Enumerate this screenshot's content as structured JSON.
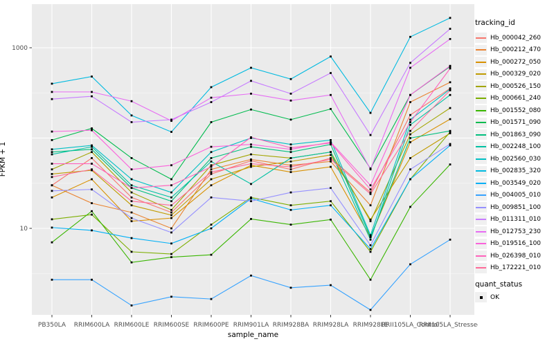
{
  "chart_data": {
    "type": "line",
    "xlabel": "sample_name",
    "ylabel": "FPKM + 1",
    "legend_title": "tracking_id",
    "quant_legend": {
      "title": "quant_status",
      "items": [
        "OK"
      ]
    },
    "y_scale": "log10",
    "y_ticks": [
      10,
      1000
    ],
    "y_minor": [
      3.162,
      31.62,
      316.2
    ],
    "y_majors_grid": [
      10,
      100,
      1000
    ],
    "ylim_px_note": "log axis, values are FPKM+1",
    "categories": [
      "PB350LA",
      "RRIM600LA",
      "RRIM600LE",
      "RRIM600SE",
      "RRIM600PE",
      "RRIM901LA",
      "RRIM928BA",
      "RRIM928LA",
      "RRIM928LE",
      "RRII105LA_Control",
      "RRII105LA_Stressed"
    ],
    "series": [
      {
        "name": "Hb_000042_260",
        "color": "#F8766D",
        "values": [
          30,
          60,
          22,
          15,
          40,
          56,
          45,
          60,
          25,
          180,
          355
        ]
      },
      {
        "name": "Hb_000212_470",
        "color": "#EA8331",
        "values": [
          30,
          19,
          15,
          10,
          45,
          58,
          50,
          55,
          18,
          250,
          415
        ]
      },
      {
        "name": "Hb_000272_050",
        "color": "#D89000",
        "values": [
          22,
          35,
          12,
          13,
          30,
          50,
          42,
          48,
          8,
          90,
          162
        ]
      },
      {
        "name": "Hb_000329_020",
        "color": "#C09B00",
        "values": [
          40,
          44,
          18,
          14,
          35,
          48,
          55,
          65,
          12.5,
          60,
          113
        ]
      },
      {
        "name": "Hb_000526_150",
        "color": "#A3A500",
        "values": [
          45,
          70,
          25,
          16,
          50,
          66,
          60,
          70,
          12,
          110,
          215
        ]
      },
      {
        "name": "Hb_000661_240",
        "color": "#7CAE00",
        "values": [
          12.6,
          14.2,
          5.5,
          5.2,
          11,
          22,
          18,
          20,
          5.5,
          35,
          117
        ]
      },
      {
        "name": "Hb_001552_080",
        "color": "#39B600",
        "values": [
          7,
          15.5,
          4.2,
          4.8,
          5.1,
          12.7,
          11,
          12.5,
          2.7,
          17.3,
          51
        ]
      },
      {
        "name": "Hb_001571_090",
        "color": "#00BB4E",
        "values": [
          95,
          128,
          60,
          35,
          150,
          207,
          160,
          210,
          46,
          300,
          620
        ]
      },
      {
        "name": "Hb_001863_090",
        "color": "#00BF7D",
        "values": [
          70,
          75,
          28,
          20,
          60,
          80,
          70,
          85,
          8,
          100,
          120
        ]
      },
      {
        "name": "Hb_002248_100",
        "color": "#00C1A3",
        "values": [
          66,
          80,
          30,
          22,
          55,
          31,
          60,
          70,
          7.5,
          140,
          300
        ]
      },
      {
        "name": "Hb_002560_030",
        "color": "#00BFC4",
        "values": [
          75,
          83,
          35,
          25,
          70,
          100,
          85,
          95,
          8.4,
          160,
          348
        ]
      },
      {
        "name": "Hb_002835_320",
        "color": "#00BAE0",
        "values": [
          400,
          480,
          178,
          117,
          366,
          600,
          450,
          800,
          190,
          1320,
          2140
        ]
      },
      {
        "name": "Hb_003549_020",
        "color": "#00B0F6",
        "values": [
          10.2,
          9.5,
          7.8,
          6.8,
          10,
          21.4,
          16,
          18,
          5.9,
          35,
          83
        ]
      },
      {
        "name": "Hb_004005_010",
        "color": "#35A2FF",
        "values": [
          2.7,
          2.7,
          1.4,
          1.75,
          1.65,
          3.0,
          2.2,
          2.35,
          1.25,
          4.0,
          7.5
        ]
      },
      {
        "name": "Hb_009851_100",
        "color": "#9590FF",
        "values": [
          26,
          27,
          13,
          9,
          22,
          20,
          25,
          28,
          6.5,
          45,
          86
        ]
      },
      {
        "name": "Hb_011311_010",
        "color": "#C77CFF",
        "values": [
          270,
          290,
          150,
          160,
          250,
          430,
          310,
          525,
          108,
          680,
          1620
        ]
      },
      {
        "name": "Hb_012753_230",
        "color": "#E76BF3",
        "values": [
          324,
          324,
          256,
          155,
          280,
          310,
          260,
          300,
          45,
          600,
          1250
        ]
      },
      {
        "name": "Hb_019516_100",
        "color": "#FA62DB",
        "values": [
          118,
          122,
          45,
          50,
          80,
          85,
          75,
          90,
          30,
          300,
          630
        ]
      },
      {
        "name": "Hb_026398_010",
        "color": "#FF62BC",
        "values": [
          52,
          52,
          28,
          30,
          48,
          102,
          78,
          88,
          27,
          150,
          590
        ]
      },
      {
        "name": "Hb_172221_010",
        "color": "#FF6A98",
        "values": [
          37,
          45,
          20,
          18,
          42,
          52,
          48,
          58,
          24,
          120,
          338
        ]
      }
    ],
    "style": {
      "panel_bg": "#EBEBEB",
      "grid_major": "#FFFFFF",
      "grid_minor": "#F5F5F5",
      "tick_text_color": "#4D4D4D",
      "point_color": "#000000"
    }
  }
}
